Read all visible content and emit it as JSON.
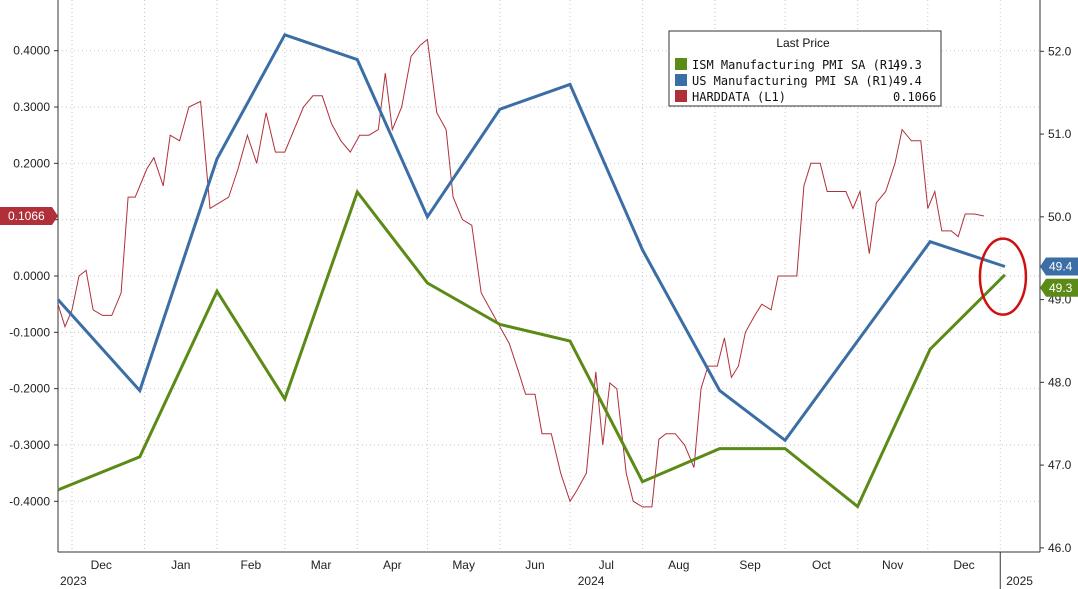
{
  "chart_data": {
    "type": "line",
    "x_axis": {
      "months": [
        "Dec",
        "Jan",
        "Feb",
        "Mar",
        "Apr",
        "May",
        "Jun",
        "Jul",
        "Aug",
        "Sep",
        "Oct",
        "Nov",
        "Dec"
      ],
      "years": [
        "2023",
        "2024",
        "2025"
      ]
    },
    "y_left": {
      "ylim": [
        -0.49,
        0.49
      ],
      "ticks": [
        "0.4000",
        "0.3000",
        "0.2000",
        "0.1000",
        "0.0000",
        "-0.1000",
        "-0.2000",
        "-0.3000",
        "-0.4000"
      ],
      "tick_values": [
        0.4,
        0.3,
        0.2,
        0.1,
        0.0,
        -0.1,
        -0.2,
        -0.3,
        -0.4
      ]
    },
    "y_right": {
      "ylim": [
        45.95,
        52.62
      ],
      "ticks": [
        "52.0",
        "51.0",
        "50.0",
        "49.0",
        "48.0",
        "47.0",
        "46.0"
      ],
      "tick_values": [
        52.0,
        51.0,
        50.0,
        49.0,
        48.0,
        47.0,
        46.0
      ]
    },
    "grid": true,
    "legend": {
      "position": "top-right",
      "title": "Last Price",
      "entries": [
        {
          "label": "ISM Manufacturing PMI SA  (R1)",
          "value": "49.3",
          "color": "#5c8a17"
        },
        {
          "label": "US Manufacturing PMI SA  (R1)",
          "value": "49.4",
          "color": "#3b6ea5"
        },
        {
          "label": "HARDDATA  (L1)",
          "value": "0.1066",
          "color": "#b0303a"
        }
      ]
    },
    "last_value_tags": {
      "left": {
        "text": "0.1066",
        "value": 0.1066,
        "color": "#b0303a"
      },
      "right": [
        {
          "text": "49.4",
          "value": 49.4,
          "color": "#3b6ea5"
        },
        {
          "text": "49.3",
          "value": 49.3,
          "color": "#5c8a17"
        }
      ]
    },
    "series": [
      {
        "axis": "right",
        "color": "#5c8a17",
        "points": [
          [
            "2023-11-25",
            46.7
          ],
          [
            "2023-12-30",
            47.1
          ],
          [
            "2024-02-01",
            49.1
          ],
          [
            "2024-03-01",
            47.8
          ],
          [
            "2024-04-01",
            50.3
          ],
          [
            "2024-05-01",
            49.2
          ],
          [
            "2024-06-01",
            48.7
          ],
          [
            "2024-07-01",
            48.5
          ],
          [
            "2024-08-01",
            46.8
          ],
          [
            "2024-09-03",
            47.2
          ],
          [
            "2024-10-01",
            47.2
          ],
          [
            "2024-11-01",
            46.5
          ],
          [
            "2024-12-02",
            48.4
          ],
          [
            "2025-01-03",
            49.3
          ]
        ]
      },
      {
        "axis": "right",
        "color": "#3b6ea5",
        "points": [
          [
            "2023-11-25",
            49.0
          ],
          [
            "2023-12-30",
            47.9
          ],
          [
            "2024-02-01",
            50.7
          ],
          [
            "2024-03-01",
            52.2
          ],
          [
            "2024-04-01",
            51.9
          ],
          [
            "2024-05-01",
            50.0
          ],
          [
            "2024-06-01",
            51.3
          ],
          [
            "2024-07-01",
            51.6
          ],
          [
            "2024-08-01",
            49.6
          ],
          [
            "2024-09-03",
            47.9
          ],
          [
            "2024-10-01",
            47.3
          ],
          [
            "2024-11-01",
            48.5
          ],
          [
            "2024-12-02",
            49.7
          ],
          [
            "2025-01-03",
            49.4
          ]
        ]
      },
      {
        "axis": "left",
        "color": "#b0303a",
        "points": [
          [
            "2023-11-25",
            -0.05
          ],
          [
            "2023-11-28",
            -0.09
          ],
          [
            "2023-12-01",
            -0.06
          ],
          [
            "2023-12-04",
            0.0
          ],
          [
            "2023-12-07",
            0.01
          ],
          [
            "2023-12-10",
            -0.06
          ],
          [
            "2023-12-14",
            -0.07
          ],
          [
            "2023-12-18",
            -0.07
          ],
          [
            "2023-12-22",
            -0.03
          ],
          [
            "2023-12-25",
            0.14
          ],
          [
            "2023-12-28",
            0.14
          ],
          [
            "2024-01-02",
            0.19
          ],
          [
            "2024-01-05",
            0.21
          ],
          [
            "2024-01-09",
            0.16
          ],
          [
            "2024-01-12",
            0.25
          ],
          [
            "2024-01-16",
            0.24
          ],
          [
            "2024-01-20",
            0.3
          ],
          [
            "2024-01-25",
            0.31
          ],
          [
            "2024-01-29",
            0.12
          ],
          [
            "2024-02-02",
            0.13
          ],
          [
            "2024-02-06",
            0.14
          ],
          [
            "2024-02-10",
            0.19
          ],
          [
            "2024-02-14",
            0.25
          ],
          [
            "2024-02-18",
            0.2
          ],
          [
            "2024-02-22",
            0.29
          ],
          [
            "2024-02-26",
            0.22
          ],
          [
            "2024-03-01",
            0.22
          ],
          [
            "2024-03-05",
            0.26
          ],
          [
            "2024-03-09",
            0.3
          ],
          [
            "2024-03-13",
            0.32
          ],
          [
            "2024-03-17",
            0.32
          ],
          [
            "2024-03-21",
            0.27
          ],
          [
            "2024-03-25",
            0.24
          ],
          [
            "2024-03-29",
            0.22
          ],
          [
            "2024-04-02",
            0.25
          ],
          [
            "2024-04-06",
            0.25
          ],
          [
            "2024-04-10",
            0.26
          ],
          [
            "2024-04-13",
            0.36
          ],
          [
            "2024-04-16",
            0.26
          ],
          [
            "2024-04-20",
            0.3
          ],
          [
            "2024-04-24",
            0.39
          ],
          [
            "2024-04-28",
            0.41
          ],
          [
            "2024-05-01",
            0.42
          ],
          [
            "2024-05-05",
            0.29
          ],
          [
            "2024-05-09",
            0.26
          ],
          [
            "2024-05-12",
            0.14
          ],
          [
            "2024-05-16",
            0.1
          ],
          [
            "2024-05-20",
            0.09
          ],
          [
            "2024-05-24",
            -0.03
          ],
          [
            "2024-05-28",
            -0.06
          ],
          [
            "2024-06-01",
            -0.09
          ],
          [
            "2024-06-05",
            -0.12
          ],
          [
            "2024-06-09",
            -0.17
          ],
          [
            "2024-06-12",
            -0.21
          ],
          [
            "2024-06-16",
            -0.21
          ],
          [
            "2024-06-19",
            -0.28
          ],
          [
            "2024-06-23",
            -0.28
          ],
          [
            "2024-06-27",
            -0.35
          ],
          [
            "2024-07-01",
            -0.4
          ],
          [
            "2024-07-04",
            -0.38
          ],
          [
            "2024-07-08",
            -0.35
          ],
          [
            "2024-07-12",
            -0.17
          ],
          [
            "2024-07-15",
            -0.3
          ],
          [
            "2024-07-18",
            -0.19
          ],
          [
            "2024-07-21",
            -0.2
          ],
          [
            "2024-07-25",
            -0.35
          ],
          [
            "2024-07-28",
            -0.4
          ],
          [
            "2024-08-01",
            -0.41
          ],
          [
            "2024-08-05",
            -0.41
          ],
          [
            "2024-08-08",
            -0.29
          ],
          [
            "2024-08-11",
            -0.28
          ],
          [
            "2024-08-15",
            -0.28
          ],
          [
            "2024-08-19",
            -0.3
          ],
          [
            "2024-08-23",
            -0.34
          ],
          [
            "2024-08-26",
            -0.2
          ],
          [
            "2024-08-29",
            -0.16
          ],
          [
            "2024-09-02",
            -0.16
          ],
          [
            "2024-09-05",
            -0.11
          ],
          [
            "2024-09-08",
            -0.18
          ],
          [
            "2024-09-11",
            -0.16
          ],
          [
            "2024-09-14",
            -0.1
          ],
          [
            "2024-09-18",
            -0.07
          ],
          [
            "2024-09-21",
            -0.05
          ],
          [
            "2024-09-25",
            -0.06
          ],
          [
            "2024-09-28",
            0.0
          ],
          [
            "2024-10-02",
            0.0
          ],
          [
            "2024-10-06",
            0.0
          ],
          [
            "2024-10-09",
            0.16
          ],
          [
            "2024-10-12",
            0.2
          ],
          [
            "2024-10-16",
            0.2
          ],
          [
            "2024-10-19",
            0.15
          ],
          [
            "2024-10-23",
            0.15
          ],
          [
            "2024-10-27",
            0.15
          ],
          [
            "2024-10-30",
            0.12
          ],
          [
            "2024-11-02",
            0.15
          ],
          [
            "2024-11-06",
            0.04
          ],
          [
            "2024-11-09",
            0.13
          ],
          [
            "2024-11-13",
            0.15
          ],
          [
            "2024-11-17",
            0.2
          ],
          [
            "2024-11-20",
            0.26
          ],
          [
            "2024-11-24",
            0.24
          ],
          [
            "2024-11-28",
            0.24
          ],
          [
            "2024-12-01",
            0.12
          ],
          [
            "2024-12-04",
            0.15
          ],
          [
            "2024-12-07",
            0.08
          ],
          [
            "2024-12-11",
            0.08
          ],
          [
            "2024-12-14",
            0.07
          ],
          [
            "2024-12-17",
            0.11
          ],
          [
            "2024-12-21",
            0.11
          ],
          [
            "2024-12-25",
            0.1066
          ]
        ]
      }
    ]
  }
}
